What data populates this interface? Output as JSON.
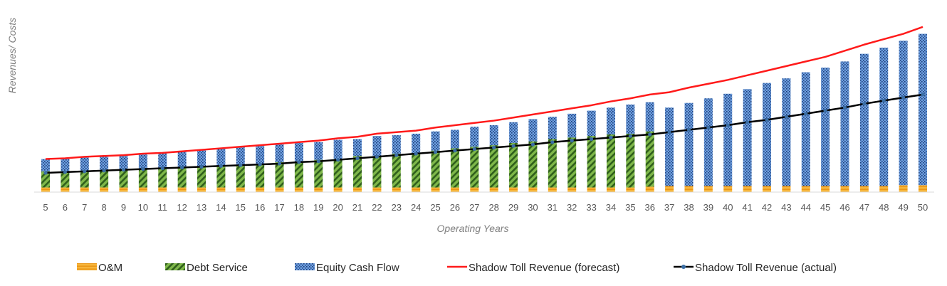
{
  "chart_data": {
    "type": "bar",
    "stacked": true,
    "title": "",
    "xlabel": "Operating Years",
    "ylabel": "Revenues/ Costs",
    "categories": [
      "5",
      "6",
      "7",
      "8",
      "9",
      "10",
      "11",
      "12",
      "13",
      "14",
      "15",
      "16",
      "17",
      "18",
      "19",
      "20",
      "21",
      "22",
      "23",
      "24",
      "25",
      "26",
      "27",
      "28",
      "29",
      "30",
      "31",
      "32",
      "33",
      "34",
      "35",
      "36",
      "37",
      "38",
      "39",
      "40",
      "41",
      "42",
      "43",
      "44",
      "45",
      "46",
      "47",
      "48",
      "49",
      "50"
    ],
    "ylim": [
      0,
      100
    ],
    "grid": false,
    "legend_position": "bottom",
    "bar_series": [
      {
        "name": "O&M",
        "color": "#f5a31a",
        "pattern": "horizontal-stripes",
        "values": [
          3,
          3,
          3,
          3,
          3,
          3,
          3,
          3,
          3,
          3,
          3,
          3,
          3,
          3,
          3,
          3,
          3,
          3,
          3,
          3,
          3,
          3,
          3,
          3,
          3,
          3,
          3,
          3,
          3,
          3,
          3,
          3.5,
          4,
          4,
          4,
          4,
          4,
          4,
          4,
          4,
          4,
          4,
          4,
          4,
          4.5,
          4.5
        ]
      },
      {
        "name": "Debt Service",
        "color": "#5a9a2c",
        "pattern": "diagonal-stripes",
        "values": [
          10.5,
          10.5,
          11,
          11,
          11.5,
          12,
          12,
          13,
          13.5,
          14,
          14.5,
          15.5,
          16.5,
          17,
          18,
          18.5,
          20.5,
          20.5,
          22,
          22.5,
          24,
          25.5,
          26.5,
          27.5,
          29,
          30,
          31.5,
          32.5,
          33.5,
          34.5,
          35,
          36,
          0,
          0,
          0,
          0,
          0,
          0,
          0,
          0,
          0,
          0,
          0,
          0,
          0,
          0
        ]
      },
      {
        "name": "Equity Cash Flow",
        "color": "#5b8fd6",
        "pattern": "dots",
        "values": [
          8,
          8.5,
          8.5,
          9,
          9,
          9.5,
          10.5,
          10.5,
          11,
          11.5,
          12,
          11.5,
          11.5,
          12,
          11.5,
          12.5,
          11,
          13,
          12,
          12.5,
          12.5,
          12,
          13,
          13,
          13.5,
          14.5,
          14.5,
          15.5,
          16.5,
          17.5,
          19,
          19,
          51,
          54,
          57,
          60,
          63,
          67,
          70,
          74,
          77,
          81,
          86,
          90,
          94,
          98.5
        ]
      }
    ],
    "line_series": [
      {
        "name": "Shadow Toll Revenue (forecast)",
        "color": "#ff1a1a",
        "values": [
          21.5,
          22,
          23,
          23.5,
          24,
          25,
          25.5,
          26.5,
          27.5,
          28.5,
          29.5,
          30.5,
          31.5,
          32.5,
          33.5,
          35,
          36,
          38,
          39,
          40,
          42,
          43.5,
          45,
          46.5,
          48.5,
          50.5,
          52.5,
          54.5,
          56.5,
          59,
          61,
          63.5,
          65,
          68,
          70.5,
          73,
          76,
          79,
          82,
          85,
          88,
          92,
          96,
          99.5,
          103,
          107.5
        ]
      },
      {
        "name": "Shadow Toll Revenue (actual)",
        "color": "#000000",
        "marker_color": "#3a6ea5",
        "values": [
          12.5,
          13,
          13.5,
          14,
          14.5,
          15,
          15.5,
          16,
          16.5,
          17,
          17.5,
          18,
          18.5,
          19.5,
          20,
          21,
          22,
          23,
          24,
          25,
          26,
          27,
          28,
          29,
          30,
          31,
          32.5,
          33.5,
          34.5,
          35.5,
          36.5,
          37.5,
          39,
          40.5,
          42,
          43.5,
          45.5,
          47,
          49,
          51,
          53,
          55,
          57.5,
          59.5,
          61.5,
          63.5
        ]
      }
    ]
  }
}
